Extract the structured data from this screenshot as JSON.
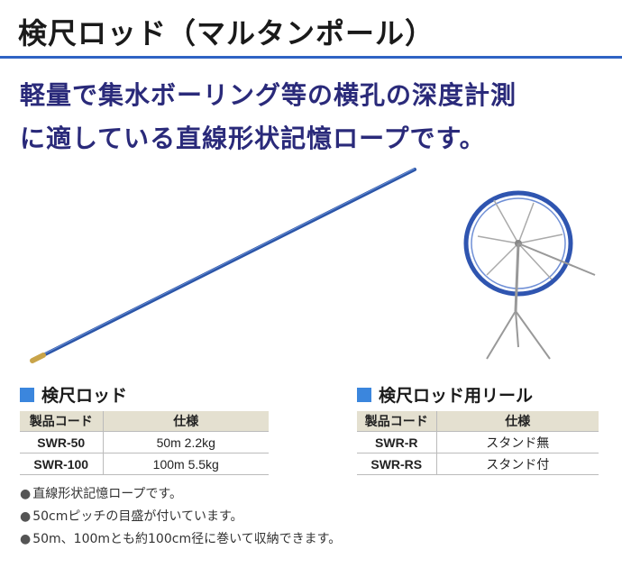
{
  "title": "検尺ロッド（マルタンポール）",
  "headline": {
    "line1": "軽量で集水ボーリング等の横孔の深度計測",
    "line2": "に適している直線形状記憶ロープです。"
  },
  "colors": {
    "accent": "#2f63c4",
    "headline": "#2a2a7a",
    "square": "#3b86dd",
    "table_header": "#e4e0d0"
  },
  "rod_section": {
    "title": "検尺ロッド",
    "headers": [
      "製品コード",
      "仕様"
    ],
    "rows": [
      {
        "code": "SWR-50",
        "spec": "50m 2.2kg"
      },
      {
        "code": "SWR-100",
        "spec": "100m 5.5kg"
      }
    ]
  },
  "reel_section": {
    "title": "検尺ロッド用リール",
    "headers": [
      "製品コード",
      "仕様"
    ],
    "rows": [
      {
        "code": "SWR-R",
        "spec": "スタンド無"
      },
      {
        "code": "SWR-RS",
        "spec": "スタンド付"
      }
    ]
  },
  "notes": [
    "直線形状記憶ロープです。",
    "50cmピッチの目盛が付いています。",
    "50m、100mとも約100cm径に巻いて収納できます。"
  ],
  "bullet": "●"
}
